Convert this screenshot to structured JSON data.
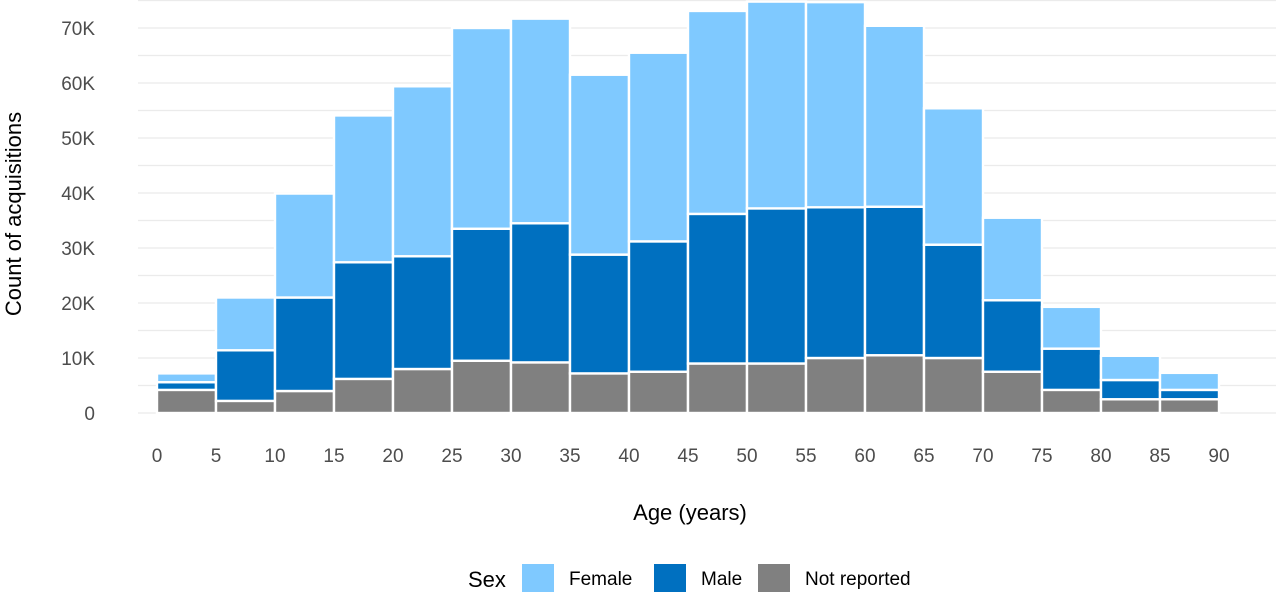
{
  "chart_data": {
    "type": "bar",
    "stacked": true,
    "xlabel": "Age (years)",
    "ylabel": "Count of acquisitions",
    "bin_width": 5,
    "x_bin_starts": [
      0,
      5,
      10,
      15,
      20,
      25,
      30,
      35,
      40,
      45,
      50,
      55,
      60,
      65,
      70,
      75,
      80,
      85
    ],
    "xlim": [
      -2.5,
      92.5
    ],
    "x_ticks": [
      0,
      5,
      10,
      15,
      20,
      25,
      30,
      35,
      40,
      45,
      50,
      55,
      60,
      65,
      70,
      75,
      80,
      85,
      90
    ],
    "x_tick_labels": [
      "0",
      "5",
      "10",
      "15",
      "20",
      "25",
      "30",
      "35",
      "40",
      "45",
      "50",
      "55",
      "60",
      "65",
      "70",
      "75",
      "80",
      "85",
      "90"
    ],
    "ylim": [
      0,
      75000
    ],
    "y_ticks": [
      0,
      10000,
      20000,
      30000,
      40000,
      50000,
      60000,
      70000
    ],
    "y_tick_labels": [
      "0",
      "10K",
      "20K",
      "30K",
      "40K",
      "50K",
      "60K",
      "70K"
    ],
    "grid": true,
    "legend_position": "bottom",
    "legend_title": "Sex",
    "series": [
      {
        "name": "Not reported",
        "color": "#808080",
        "values": [
          4200,
          2200,
          4000,
          6200,
          8000,
          9500,
          9200,
          7200,
          7500,
          9000,
          9000,
          10000,
          10500,
          10000,
          7500,
          4200,
          2500,
          2500
        ]
      },
      {
        "name": "Male",
        "color": "#0070c0",
        "values": [
          1400,
          9200,
          17000,
          21200,
          20500,
          24000,
          25300,
          21600,
          23700,
          27200,
          28200,
          27400,
          27000,
          20600,
          13000,
          7500,
          3500,
          1700
        ]
      },
      {
        "name": "Female",
        "color": "#7fc9ff",
        "values": [
          1600,
          9600,
          18900,
          26700,
          30900,
          36500,
          37200,
          32700,
          34300,
          36900,
          37600,
          37300,
          32900,
          24800,
          15000,
          7600,
          4400,
          3100
        ]
      }
    ]
  }
}
